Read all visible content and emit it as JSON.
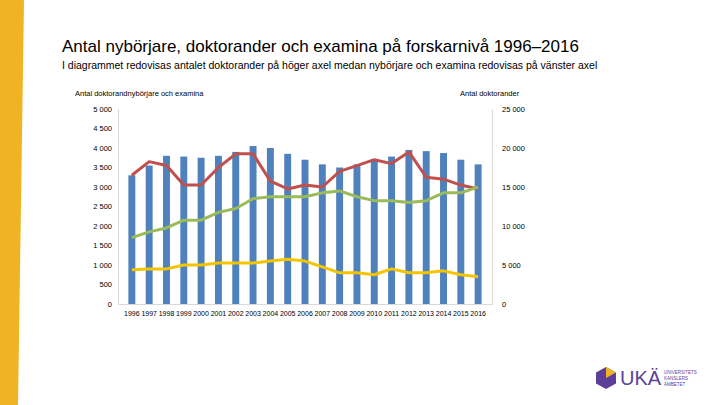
{
  "chart_data": {
    "type": "bar",
    "title": "Antal nybörjare, doktorander och examina på forskarnivå 1996–2016",
    "subtitle": "I diagrammet redovisas antalet doktorander på höger axel medan nybörjare och examina redovisas på vänster axel",
    "ylabel": "Antal doktorandnybörjare och examina",
    "y2label": "Antal doktorander",
    "categories": [
      "1996",
      "1997",
      "1998",
      "1999",
      "2000",
      "2001",
      "2002",
      "2003",
      "2004",
      "2005",
      "2006",
      "2007",
      "2008",
      "2009",
      "2010",
      "2011",
      "2012",
      "2013",
      "2014",
      "2015",
      "2016"
    ],
    "series": [
      {
        "type": "bar",
        "axis": "y2",
        "color": "#4f81bd",
        "values": [
          16500,
          17750,
          19000,
          18900,
          18750,
          19000,
          19500,
          20250,
          20000,
          19250,
          18500,
          17900,
          17500,
          17900,
          18500,
          18900,
          19750,
          19600,
          19350,
          18500,
          17900
        ]
      },
      {
        "type": "line",
        "color": "#c0504d",
        "values": [
          3300,
          3650,
          3550,
          3050,
          3050,
          3500,
          3850,
          3850,
          3150,
          2950,
          3050,
          3000,
          3400,
          3550,
          3700,
          3600,
          3900,
          3250,
          3200,
          3050,
          2950
        ]
      },
      {
        "type": "line",
        "color": "#9bbb59",
        "values": [
          1700,
          1850,
          1950,
          2150,
          2150,
          2350,
          2450,
          2700,
          2750,
          2750,
          2750,
          2850,
          2900,
          2750,
          2650,
          2650,
          2600,
          2650,
          2850,
          2850,
          3000
        ]
      },
      {
        "type": "line",
        "color": "#f5c400",
        "values": [
          880,
          900,
          900,
          1000,
          1000,
          1050,
          1050,
          1050,
          1100,
          1150,
          1100,
          950,
          800,
          800,
          750,
          900,
          800,
          800,
          850,
          750,
          700
        ]
      }
    ],
    "ylim": [
      0,
      5000
    ],
    "yticks": [
      0,
      500,
      {
        "value": 1000,
        "label": "1 000"
      },
      {
        "value": 1500,
        "label": "1 500"
      },
      {
        "value": 2000,
        "label": "2 000"
      },
      {
        "value": 2500,
        "label": "2 500"
      },
      {
        "value": 3000,
        "label": "3 000"
      },
      {
        "value": 3500,
        "label": "3 500"
      },
      {
        "value": 4000,
        "label": "4 000"
      },
      {
        "value": 4500,
        "label": "4 500"
      },
      {
        "value": 5000,
        "label": "5 000"
      }
    ],
    "y2lim": [
      0,
      25000
    ],
    "y2ticks": [
      0,
      {
        "value": 5000,
        "label": "5 000"
      },
      {
        "value": 10000,
        "label": "10 000"
      },
      {
        "value": 15000,
        "label": "15 000"
      },
      {
        "value": 20000,
        "label": "20 000"
      },
      {
        "value": 25000,
        "label": "25 000"
      }
    ],
    "grid": false
  },
  "logo": {
    "text": "UKÄ",
    "lines": [
      "UNIVERSITETS",
      "KANSLERS",
      "ÄMBETET"
    ]
  }
}
